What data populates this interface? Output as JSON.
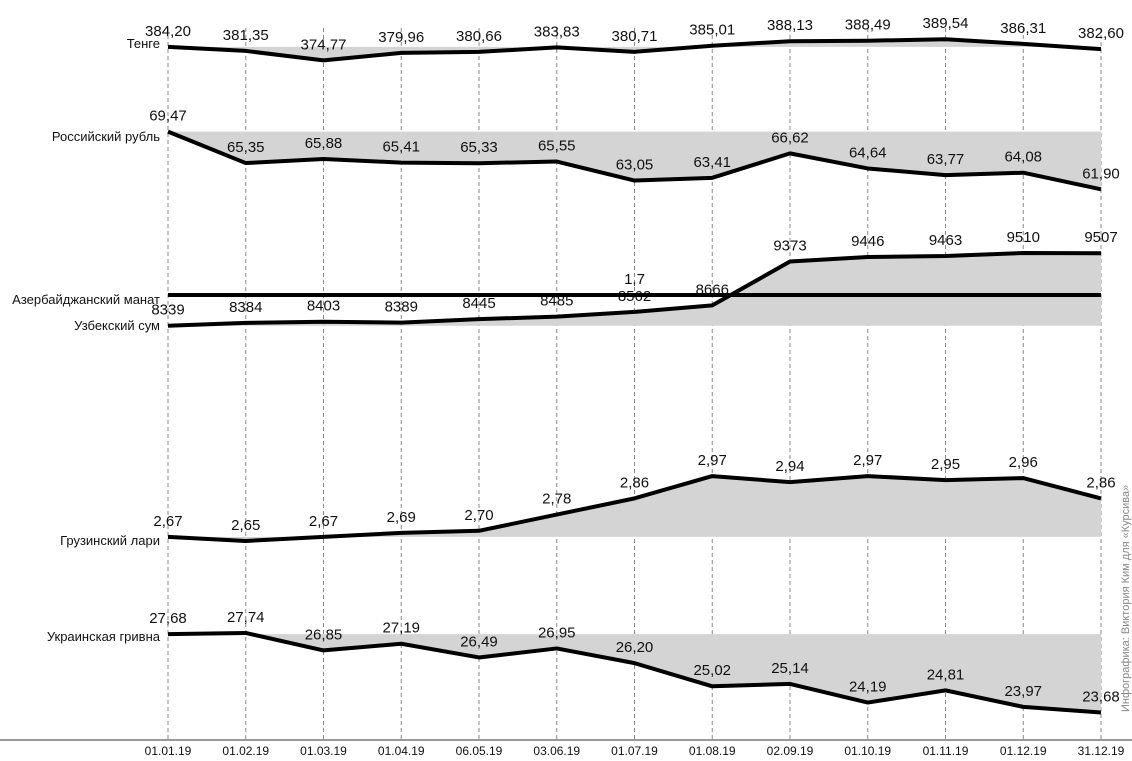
{
  "chart_data": {
    "type": "line",
    "categories": [
      "01.01.19",
      "01.02.19",
      "01.03.19",
      "01.04.19",
      "06.05.19",
      "03.06.19",
      "01.07.19",
      "01.08.19",
      "02.09.19",
      "01.10.19",
      "01.11.19",
      "01.12.19",
      "31.12.19"
    ],
    "source": "Инфографика: Виктория Ким для «Курсива»",
    "line_color": "#000000",
    "fill_color": "#d4d4d4",
    "series": [
      {
        "name": "Тенге",
        "ylim": [
          368,
          396
        ],
        "values": [
          384.2,
          381.35,
          374.77,
          379.96,
          380.66,
          383.83,
          380.71,
          385.01,
          388.13,
          388.49,
          389.54,
          386.31,
          382.6
        ],
        "value_labels": [
          "384,20",
          "381,35",
          "374,77",
          "379,96",
          "380,66",
          "383,83",
          "380,71",
          "385,01",
          "388,13",
          "388,49",
          "389,54",
          "386,31",
          "382,60"
        ]
      },
      {
        "name": "Российский рубль",
        "ylim": [
          60.5,
          71
        ],
        "values": [
          69.47,
          65.35,
          65.88,
          65.41,
          65.33,
          65.55,
          63.05,
          63.41,
          66.62,
          64.64,
          63.77,
          64.08,
          61.9
        ],
        "value_labels": [
          "69,47",
          "65,35",
          "65,88",
          "65,41",
          "65,33",
          "65,55",
          "63,05",
          "63,41",
          "66,62",
          "64,64",
          "63,77",
          "64,08",
          "61,90"
        ]
      },
      {
        "name": "Узбекский сум",
        "ylim": [
          8270,
          9720
        ],
        "values": [
          8339,
          8384,
          8403,
          8389,
          8445,
          8485,
          8562,
          8666,
          9373,
          9446,
          9463,
          9510,
          9507
        ]
      },
      {
        "name": "Азербайджанский манат",
        "ylim": [
          1.6,
          1.8
        ],
        "values": [
          1.7,
          1.7,
          1.7,
          1.7,
          1.7,
          1.7,
          1.7,
          1.7,
          1.7,
          1.7,
          1.7,
          1.7,
          1.7
        ],
        "value_labels": [
          null,
          null,
          null,
          null,
          null,
          null,
          "1,7",
          null,
          null,
          null,
          null,
          null,
          null
        ]
      },
      {
        "name": "Грузинский лари",
        "ylim": [
          2.63,
          3.0
        ],
        "values": [
          2.67,
          2.65,
          2.67,
          2.69,
          2.7,
          2.78,
          2.86,
          2.97,
          2.94,
          2.97,
          2.95,
          2.96,
          2.86
        ],
        "value_labels": [
          "2,67",
          "2,65",
          "2,67",
          "2,69",
          "2,70",
          "2,78",
          "2,86",
          "2,97",
          "2,94",
          "2,97",
          "2,95",
          "2,96",
          "2,86"
        ]
      },
      {
        "name": "Украинская гривна",
        "ylim": [
          23.3,
          28.4
        ],
        "values": [
          27.68,
          27.74,
          26.85,
          27.19,
          26.49,
          26.95,
          26.2,
          25.02,
          25.14,
          24.19,
          24.81,
          23.97,
          23.68
        ],
        "value_labels": [
          "27,68",
          "27,74",
          "26,85",
          "27,19",
          "26,49",
          "26,95",
          "26,20",
          "25,02",
          "25,14",
          "24,19",
          "24,81",
          "23,97",
          "23,68"
        ]
      }
    ]
  }
}
